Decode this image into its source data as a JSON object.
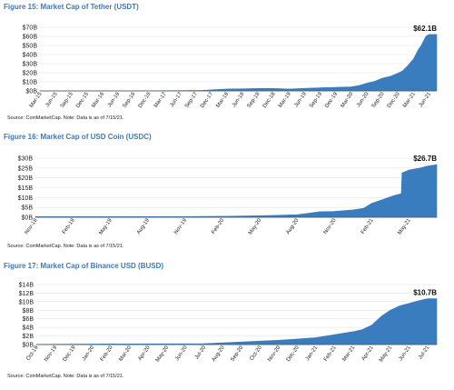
{
  "chart_data": [
    {
      "type": "area",
      "title": "Figure 15: Market Cap of Tether (USDT)",
      "source": "Source: CoinMarketCap. Note: Data is as of 7/15/21.",
      "color": "#3a7dbf",
      "y_ticks": [
        "$0B",
        "$10B",
        "$20B",
        "$30B",
        "$40B",
        "$50B",
        "$60B",
        "$70B"
      ],
      "ylim": [
        0,
        70
      ],
      "x_ticks": [
        "Mar-15",
        "Jun-15",
        "Sep-15",
        "Dec-15",
        "Mar-16",
        "Jun-16",
        "Sep-16",
        "Dec-16",
        "Mar-17",
        "Jun-17",
        "Sep-17",
        "Dec-17",
        "Mar-18",
        "Jun-18",
        "Sep-18",
        "Dec-18",
        "Mar-19",
        "Jun-19",
        "Sep-19",
        "Dec-19",
        "Mar-20",
        "Jun-20",
        "Sep-20",
        "Dec-20",
        "Mar-21",
        "Jun-21"
      ],
      "x_range": [
        0,
        25.5
      ],
      "x": [
        0,
        6,
        9,
        10.5,
        11.3,
        12,
        13,
        14,
        15,
        16,
        17,
        18,
        19,
        20,
        20.5,
        21,
        21.5,
        22,
        22.5,
        23,
        23.3,
        23.6,
        24,
        24.3,
        24.5,
        24.8,
        25,
        25.5
      ],
      "values": [
        0.1,
        0.1,
        0.3,
        0.6,
        1.4,
        2.1,
        2.3,
        2.7,
        2.7,
        2.1,
        2.8,
        3.5,
        4.0,
        4.5,
        6.0,
        8.5,
        10.5,
        14.0,
        16.0,
        19.5,
        22.0,
        27.0,
        35.0,
        45.0,
        50.0,
        60.0,
        62.1,
        62.1
      ],
      "end_label": "$62.1B"
    },
    {
      "type": "area",
      "title": "Figure 16: Market Cap of USD Coin (USDC)",
      "source": "Source: CoinMarketCap. Note: Data is as of 7/15/21.",
      "color": "#3a7dbf",
      "y_ticks": [
        "$0B",
        "$5B",
        "$10B",
        "$15B",
        "$20B",
        "$25B",
        "$30B"
      ],
      "ylim": [
        0,
        30
      ],
      "x_ticks": [
        "Nov-18",
        "Feb-19",
        "May-19",
        "Aug-19",
        "Nov-19",
        "Feb-20",
        "May-20",
        "Aug-20",
        "Nov-20",
        "Feb-21",
        "May-21"
      ],
      "x_range": [
        0,
        10.75
      ],
      "x": [
        0,
        2,
        4,
        5,
        6,
        6.5,
        7,
        7.3,
        7.6,
        8,
        8.5,
        8.8,
        9,
        9.3,
        9.6,
        9.8,
        9.82,
        10,
        10.3,
        10.5,
        10.75
      ],
      "values": [
        0.3,
        0.3,
        0.4,
        0.5,
        0.8,
        1.0,
        1.3,
        2.0,
        2.8,
        3.0,
        3.7,
        4.6,
        7.0,
        9.0,
        11.0,
        12.0,
        22.5,
        24.0,
        25.0,
        26.0,
        26.7
      ],
      "end_label": "$26.7B"
    },
    {
      "type": "area",
      "title": "Figure 17: Market Cap of Binance USD (BUSD)",
      "source": "Source: CoinMarketCap. Note: Data is as of 7/15/21.",
      "color": "#3a7dbf",
      "y_ticks": [
        "$0B",
        "$2B",
        "$4B",
        "$6B",
        "$8B",
        "$10B",
        "$12B",
        "$14B"
      ],
      "ylim": [
        0,
        14
      ],
      "x_ticks": [
        "Oct-19",
        "Nov-19",
        "Dec-19",
        "Jan-20",
        "Feb-20",
        "Mar-20",
        "Apr-20",
        "May-20",
        "Jun-20",
        "Jul-20",
        "Aug-20",
        "Sep-20",
        "Oct-20",
        "Nov-20",
        "Dec-20",
        "Jan-21",
        "Feb-21",
        "Mar-21",
        "Apr-21",
        "May-21",
        "Jun-21",
        "Jul-21"
      ],
      "x_range": [
        0,
        21.5
      ],
      "x": [
        0,
        5,
        9,
        11,
        12,
        13,
        14,
        15,
        16,
        17,
        17.5,
        18,
        18.5,
        19,
        19.5,
        20,
        20.5,
        21,
        21.5
      ],
      "values": [
        0.05,
        0.15,
        0.2,
        0.6,
        0.8,
        1.0,
        1.3,
        1.6,
        2.3,
        3.0,
        3.5,
        4.5,
        6.5,
        8.0,
        9.0,
        9.6,
        10.2,
        10.7,
        10.7
      ],
      "end_label": "$10.7B"
    }
  ]
}
